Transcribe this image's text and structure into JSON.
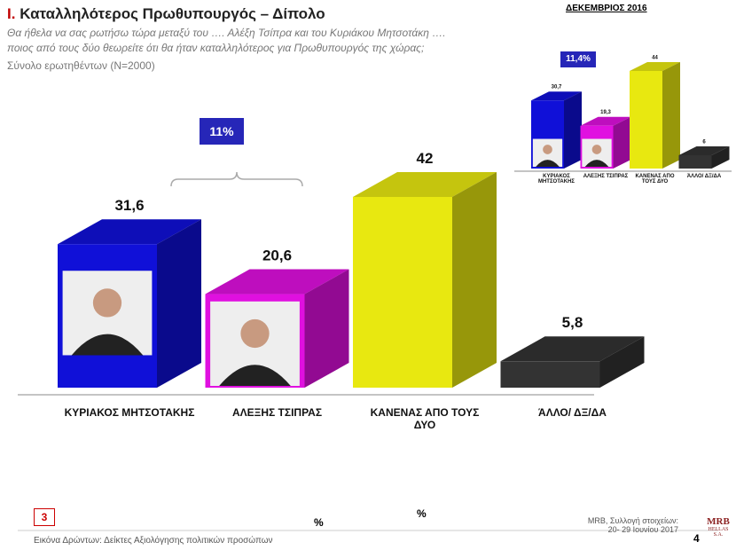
{
  "header": {
    "number": "I.",
    "title": "Καταλληλότερος Πρωθυπουργός – Δίπολο",
    "question_1": "Θα ήθελα να σας ρωτήσω τώρα μεταξύ του …. Αλέξη Τσίπρα και του Κυριάκου Μητσοτάκη ….",
    "question_2": "ποιος από τους δύο θεωρείτε ότι θα ήταν καταλληλότερος για Πρωθυπουργός της χώρας;",
    "base": "Σύνολο ερωτηθέντων (N=2000)"
  },
  "chart_data": [
    {
      "type": "bar",
      "categories": [
        "ΚΥΡΙΑΚΟΣ ΜΗΤΣΟΤΑΚΗΣ",
        "ΑΛΕΞΗΣ ΤΣΙΠΡΑΣ",
        "ΚΑΝΕΝΑΣ ΑΠΟ ΤΟΥΣ ΔΥΟ",
        "ΆΛΛΟ/ ΔΞ/ΔΑ"
      ],
      "values": [
        31.6,
        20.6,
        42,
        5.8
      ],
      "value_labels": [
        "31,6",
        "20,6",
        "42",
        "5,8"
      ],
      "colors": [
        "#1010d8",
        "#e010e0",
        "#e8e810",
        "#333333"
      ],
      "annotation": "11%"
    },
    {
      "type": "bar",
      "title": "ΔΕΚΕΜΒΡΙΟΣ 2016",
      "categories": [
        "ΚΥΡΙΑΚΟΣ ΜΗΤΣΟΤΑΚΗΣ",
        "ΑΛΕΞΗΣ ΤΣΙΠΡΑΣ",
        "ΚΑΝΕΝΑΣ ΑΠΟ ΤΟΥΣ ΔΥΟ",
        "ΆΛΛΟ/ ΔΞ/ΔΑ"
      ],
      "values": [
        30.7,
        19.3,
        44,
        6
      ],
      "value_labels": [
        "30,7",
        "19,3",
        "44",
        "6"
      ],
      "colors": [
        "#1010d8",
        "#e010e0",
        "#e8e810",
        "#333333"
      ],
      "annotation": "11,4%"
    }
  ],
  "footer": {
    "box": "3",
    "pct_1": "%",
    "pct_2": "%",
    "source": "Εικόνα Δρώντων: Δείκτες Αξιολόγησης πολιτικών προσώπων",
    "mrb_1": "MRB, Συλλογή στοιχείων:",
    "mrb_2": "20- 29 Ιουνίου 2017",
    "page": "4",
    "logo": "MRB",
    "logo_sub": "HELLAS S.A."
  }
}
